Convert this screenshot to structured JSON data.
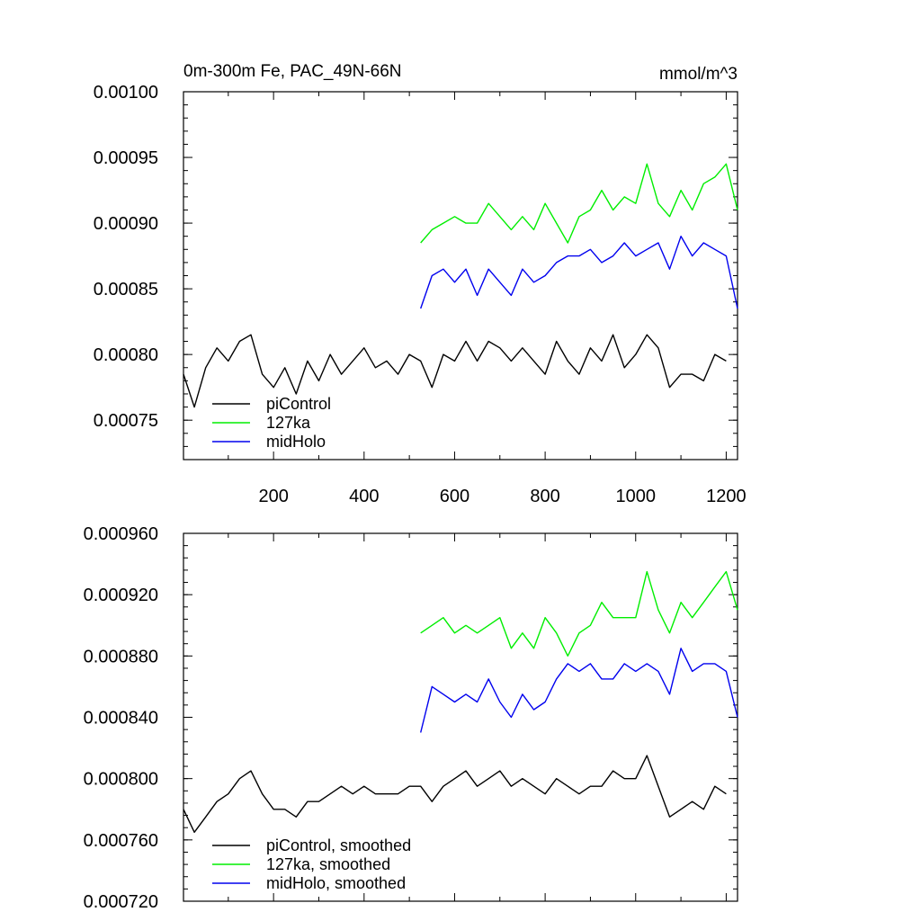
{
  "chart_data": [
    {
      "type": "line",
      "title_left": "0m-300m Fe, PAC_49N-66N",
      "title_right": "mmol/m^3",
      "xlim": [
        1,
        1225
      ],
      "ylim": [
        0.00072,
        0.001
      ],
      "x_ticks": [
        200,
        400,
        600,
        800,
        1000,
        1200
      ],
      "x_tick_labels": [
        "200",
        "400",
        "600",
        "800",
        "1000",
        "1200"
      ],
      "y_ticks": [
        0.00075,
        0.0008,
        0.00085,
        0.0009,
        0.00095,
        0.001
      ],
      "y_tick_labels": [
        "0.00075",
        "0.00080",
        "0.00085",
        "0.00090",
        "0.00095",
        "0.00100"
      ],
      "legend_position": "lower-left",
      "series": [
        {
          "name": "piControl",
          "color": "#000000",
          "x": [
            1,
            25,
            50,
            75,
            100,
            125,
            150,
            175,
            200,
            225,
            250,
            275,
            300,
            325,
            350,
            375,
            400,
            425,
            450,
            475,
            500,
            525,
            550,
            575,
            600,
            625,
            650,
            675,
            700,
            725,
            750,
            775,
            800,
            825,
            850,
            875,
            900,
            925,
            950,
            975,
            1000,
            1025,
            1050,
            1075,
            1100,
            1125,
            1150,
            1175,
            1200
          ],
          "y": [
            0.000785,
            0.00076,
            0.00079,
            0.000805,
            0.000795,
            0.00081,
            0.000815,
            0.000785,
            0.000775,
            0.00079,
            0.00077,
            0.000795,
            0.00078,
            0.0008,
            0.000785,
            0.000795,
            0.000805,
            0.00079,
            0.000795,
            0.000785,
            0.0008,
            0.000795,
            0.000775,
            0.0008,
            0.000795,
            0.00081,
            0.000795,
            0.00081,
            0.000805,
            0.000795,
            0.000805,
            0.000795,
            0.000785,
            0.00081,
            0.000795,
            0.000785,
            0.000805,
            0.000795,
            0.000815,
            0.00079,
            0.0008,
            0.000815,
            0.000805,
            0.000775,
            0.000785,
            0.000785,
            0.00078,
            0.0008,
            0.000795
          ]
        },
        {
          "name": "127ka",
          "color": "#00ee00",
          "x": [
            525,
            550,
            575,
            600,
            625,
            650,
            675,
            700,
            725,
            750,
            775,
            800,
            825,
            850,
            875,
            900,
            925,
            950,
            975,
            1000,
            1025,
            1050,
            1075,
            1100,
            1125,
            1150,
            1175,
            1200,
            1225
          ],
          "y": [
            0.000885,
            0.000895,
            0.0009,
            0.000905,
            0.0009,
            0.0009,
            0.000915,
            0.000905,
            0.000895,
            0.000905,
            0.000895,
            0.000915,
            0.0009,
            0.000885,
            0.000905,
            0.00091,
            0.000925,
            0.00091,
            0.00092,
            0.000915,
            0.000945,
            0.000915,
            0.000905,
            0.000925,
            0.00091,
            0.00093,
            0.000935,
            0.000945,
            0.00091
          ]
        },
        {
          "name": "midHolo",
          "color": "#0000ee",
          "x": [
            525,
            550,
            575,
            600,
            625,
            650,
            675,
            700,
            725,
            750,
            775,
            800,
            825,
            850,
            875,
            900,
            925,
            950,
            975,
            1000,
            1025,
            1050,
            1075,
            1100,
            1125,
            1150,
            1175,
            1200,
            1225
          ],
          "y": [
            0.000835,
            0.00086,
            0.000865,
            0.000855,
            0.000865,
            0.000845,
            0.000865,
            0.000855,
            0.000845,
            0.000865,
            0.000855,
            0.00086,
            0.00087,
            0.000875,
            0.000875,
            0.00088,
            0.00087,
            0.000875,
            0.000885,
            0.000875,
            0.00088,
            0.000885,
            0.000865,
            0.00089,
            0.000875,
            0.000885,
            0.00088,
            0.000875,
            0.000835
          ]
        }
      ]
    },
    {
      "type": "line",
      "xlim": [
        1,
        1225
      ],
      "ylim": [
        0.00072,
        0.00096
      ],
      "x_ticks": [
        200,
        400,
        600,
        800,
        1000,
        1200
      ],
      "y_ticks": [
        0.00072,
        0.00076,
        0.0008,
        0.00084,
        0.00088,
        0.00092,
        0.00096
      ],
      "y_tick_labels": [
        "0.000720",
        "0.000760",
        "0.000800",
        "0.000840",
        "0.000880",
        "0.000920",
        "0.000960"
      ],
      "legend_position": "lower-left",
      "series": [
        {
          "name": "piControl, smoothed",
          "color": "#000000",
          "x": [
            1,
            25,
            50,
            75,
            100,
            125,
            150,
            175,
            200,
            225,
            250,
            275,
            300,
            325,
            350,
            375,
            400,
            425,
            450,
            475,
            500,
            525,
            550,
            575,
            600,
            625,
            650,
            675,
            700,
            725,
            750,
            775,
            800,
            825,
            850,
            875,
            900,
            925,
            950,
            975,
            1000,
            1025,
            1050,
            1075,
            1100,
            1125,
            1150,
            1175,
            1200
          ],
          "y": [
            0.00078,
            0.000765,
            0.000775,
            0.000785,
            0.00079,
            0.0008,
            0.000805,
            0.00079,
            0.00078,
            0.00078,
            0.000775,
            0.000785,
            0.000785,
            0.00079,
            0.000795,
            0.00079,
            0.000795,
            0.00079,
            0.00079,
            0.00079,
            0.000795,
            0.000795,
            0.000785,
            0.000795,
            0.0008,
            0.000805,
            0.000795,
            0.0008,
            0.000805,
            0.000795,
            0.0008,
            0.000795,
            0.00079,
            0.0008,
            0.000795,
            0.00079,
            0.000795,
            0.000795,
            0.000805,
            0.0008,
            0.0008,
            0.000815,
            0.000795,
            0.000775,
            0.00078,
            0.000785,
            0.00078,
            0.000795,
            0.00079
          ]
        },
        {
          "name": "127ka, smoothed",
          "color": "#00ee00",
          "x": [
            525,
            550,
            575,
            600,
            625,
            650,
            675,
            700,
            725,
            750,
            775,
            800,
            825,
            850,
            875,
            900,
            925,
            950,
            975,
            1000,
            1025,
            1050,
            1075,
            1100,
            1125,
            1150,
            1175,
            1200,
            1225
          ],
          "y": [
            0.000895,
            0.0009,
            0.000905,
            0.000895,
            0.0009,
            0.000895,
            0.0009,
            0.000905,
            0.000885,
            0.000895,
            0.000885,
            0.000905,
            0.000895,
            0.00088,
            0.000895,
            0.0009,
            0.000915,
            0.000905,
            0.000905,
            0.000905,
            0.000935,
            0.00091,
            0.000895,
            0.000915,
            0.000905,
            0.000915,
            0.000925,
            0.000935,
            0.00091
          ]
        },
        {
          "name": "midHolo, smoothed",
          "color": "#0000ee",
          "x": [
            525,
            550,
            575,
            600,
            625,
            650,
            675,
            700,
            725,
            750,
            775,
            800,
            825,
            850,
            875,
            900,
            925,
            950,
            975,
            1000,
            1025,
            1050,
            1075,
            1100,
            1125,
            1150,
            1175,
            1200,
            1225
          ],
          "y": [
            0.00083,
            0.00086,
            0.000855,
            0.00085,
            0.000855,
            0.00085,
            0.000865,
            0.00085,
            0.00084,
            0.000855,
            0.000845,
            0.00085,
            0.000865,
            0.000875,
            0.00087,
            0.000875,
            0.000865,
            0.000865,
            0.000875,
            0.00087,
            0.000875,
            0.00087,
            0.000855,
            0.000885,
            0.00087,
            0.000875,
            0.000875,
            0.00087,
            0.00084
          ]
        }
      ]
    }
  ]
}
